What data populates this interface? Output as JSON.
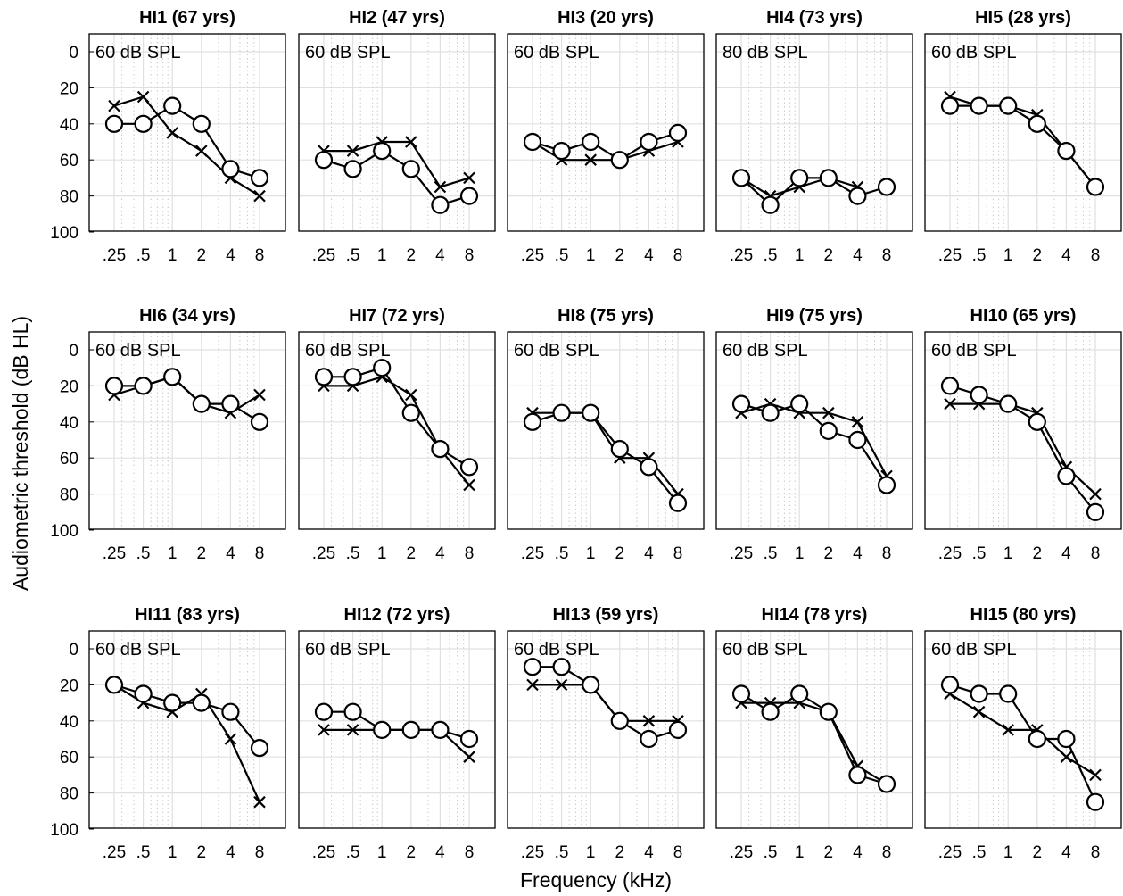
{
  "chart_data": {
    "type": "line",
    "xlabel": "Frequency (kHz)",
    "ylabel": "Audiometric threshold (dB HL)",
    "x_scale": "log2",
    "x_ticks": [
      ".25",
      ".5",
      "1",
      "2",
      "4",
      "8"
    ],
    "x_values_khz": [
      0.25,
      0.5,
      1,
      2,
      4,
      8
    ],
    "y_ticks": [
      "0",
      "20",
      "40",
      "60",
      "80",
      "100"
    ],
    "ylim": [
      0,
      100
    ],
    "y_reversed": true,
    "grid": true,
    "series_markers": {
      "x_series": "cross",
      "o_series": "open-circle"
    },
    "panels": [
      {
        "title": "HI1 (67 yrs)",
        "annotation": "60 dB SPL",
        "x_series": [
          30,
          25,
          45,
          55,
          70,
          80
        ],
        "o_series": [
          40,
          40,
          30,
          40,
          65,
          70
        ]
      },
      {
        "title": "HI2 (47 yrs)",
        "annotation": "60 dB SPL",
        "x_series": [
          55,
          55,
          50,
          50,
          75,
          70
        ],
        "o_series": [
          60,
          65,
          55,
          65,
          85,
          80
        ]
      },
      {
        "title": "HI3 (20 yrs)",
        "annotation": "60 dB SPL",
        "x_series": [
          50,
          60,
          60,
          60,
          55,
          50
        ],
        "o_series": [
          50,
          55,
          50,
          60,
          50,
          45
        ]
      },
      {
        "title": "HI4 (73 yrs)",
        "annotation": "80 dB SPL",
        "x_series": [
          70,
          80,
          75,
          70,
          75,
          null
        ],
        "o_series": [
          70,
          85,
          70,
          70,
          80,
          75
        ]
      },
      {
        "title": "HI5 (28 yrs)",
        "annotation": "60 dB SPL",
        "x_series": [
          25,
          30,
          30,
          35,
          55,
          75
        ],
        "o_series": [
          30,
          30,
          30,
          40,
          55,
          75
        ]
      },
      {
        "title": "HI6 (34 yrs)",
        "annotation": "60 dB SPL",
        "x_series": [
          25,
          20,
          15,
          30,
          35,
          25
        ],
        "o_series": [
          20,
          20,
          15,
          30,
          30,
          40
        ]
      },
      {
        "title": "HI7 (72 yrs)",
        "annotation": "60 dB SPL",
        "x_series": [
          20,
          20,
          15,
          25,
          55,
          75
        ],
        "o_series": [
          15,
          15,
          10,
          35,
          55,
          65
        ]
      },
      {
        "title": "HI8 (75 yrs)",
        "annotation": "60 dB SPL",
        "x_series": [
          35,
          35,
          35,
          60,
          60,
          80
        ],
        "o_series": [
          40,
          35,
          35,
          55,
          65,
          85
        ]
      },
      {
        "title": "HI9 (75 yrs)",
        "annotation": "60 dB SPL",
        "x_series": [
          35,
          30,
          35,
          35,
          40,
          70
        ],
        "o_series": [
          30,
          35,
          30,
          45,
          50,
          75
        ]
      },
      {
        "title": "HI10 (65 yrs)",
        "annotation": "60 dB SPL",
        "x_series": [
          30,
          30,
          30,
          35,
          65,
          80
        ],
        "o_series": [
          20,
          25,
          30,
          40,
          70,
          90
        ]
      },
      {
        "title": "HI11 (83 yrs)",
        "annotation": "60 dB SPL",
        "x_series": [
          20,
          30,
          35,
          25,
          50,
          85
        ],
        "o_series": [
          20,
          25,
          30,
          30,
          35,
          55
        ]
      },
      {
        "title": "HI12 (72 yrs)",
        "annotation": "60 dB SPL",
        "x_series": [
          45,
          45,
          45,
          45,
          45,
          60
        ],
        "o_series": [
          35,
          35,
          45,
          45,
          45,
          50
        ]
      },
      {
        "title": "HI13 (59 yrs)",
        "annotation": "60 dB SPL",
        "x_series": [
          20,
          20,
          20,
          40,
          40,
          40
        ],
        "o_series": [
          10,
          10,
          20,
          40,
          50,
          45
        ]
      },
      {
        "title": "HI14 (78 yrs)",
        "annotation": "60 dB SPL",
        "x_series": [
          30,
          30,
          30,
          35,
          65,
          75
        ],
        "o_series": [
          25,
          35,
          25,
          35,
          70,
          75
        ]
      },
      {
        "title": "HI15 (80 yrs)",
        "annotation": "60 dB SPL",
        "x_series": [
          25,
          35,
          45,
          45,
          60,
          70
        ],
        "o_series": [
          20,
          25,
          25,
          50,
          50,
          85
        ]
      }
    ]
  }
}
